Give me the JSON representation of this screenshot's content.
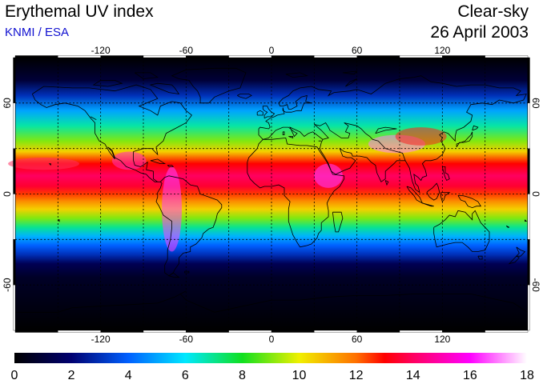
{
  "header": {
    "title": "Erythemal UV index",
    "credit": "KNMI / ESA",
    "condition": "Clear-sky",
    "date": "26 April 2003"
  },
  "map": {
    "projection": "equirectangular",
    "lon_range": [
      -180,
      180
    ],
    "lat_range": [
      -90,
      90
    ],
    "gridlines": "dotted",
    "grid_lon": [
      -150,
      -120,
      -90,
      -60,
      -30,
      0,
      30,
      60,
      90,
      120,
      150
    ],
    "grid_lat": [
      -60,
      -30,
      0,
      30,
      60
    ],
    "lon_ticks": [
      {
        "value": -120,
        "label": "-120"
      },
      {
        "value": -60,
        "label": "-60"
      },
      {
        "value": 0,
        "label": "0"
      },
      {
        "value": 60,
        "label": "60"
      },
      {
        "value": 120,
        "label": "120"
      }
    ],
    "lat_ticks": [
      {
        "value": 60,
        "label": "60"
      },
      {
        "value": 0,
        "label": "0"
      },
      {
        "value": -60,
        "label": "-60"
      }
    ],
    "uv_by_latitude": [
      {
        "lat": 90,
        "uv": 0
      },
      {
        "lat": 75,
        "uv": 1.0
      },
      {
        "lat": 65,
        "uv": 3.0
      },
      {
        "lat": 55,
        "uv": 5.0
      },
      {
        "lat": 45,
        "uv": 6.8
      },
      {
        "lat": 35,
        "uv": 9.0
      },
      {
        "lat": 28,
        "uv": 10.5
      },
      {
        "lat": 20,
        "uv": 13.0
      },
      {
        "lat": 12,
        "uv": 14.0
      },
      {
        "lat": 5,
        "uv": 13.5
      },
      {
        "lat": 0,
        "uv": 12.5
      },
      {
        "lat": -5,
        "uv": 11.5
      },
      {
        "lat": -10,
        "uv": 10.5
      },
      {
        "lat": -16,
        "uv": 9.0
      },
      {
        "lat": -22,
        "uv": 7.0
      },
      {
        "lat": -28,
        "uv": 5.2
      },
      {
        "lat": -34,
        "uv": 4.0
      },
      {
        "lat": -40,
        "uv": 3.0
      },
      {
        "lat": -46,
        "uv": 1.5
      },
      {
        "lat": -55,
        "uv": 0.7
      },
      {
        "lat": -90,
        "uv": 0
      }
    ]
  },
  "colorbar": {
    "min": 0,
    "max": 18,
    "labels": [
      "0",
      "2",
      "4",
      "6",
      "8",
      "10",
      "12",
      "14",
      "16",
      "18"
    ],
    "stops": [
      {
        "value": 0,
        "color": "#000000"
      },
      {
        "value": 2,
        "color": "#000070"
      },
      {
        "value": 4,
        "color": "#0060ff"
      },
      {
        "value": 6,
        "color": "#00e8ff"
      },
      {
        "value": 8,
        "color": "#10e020"
      },
      {
        "value": 10,
        "color": "#f0f000"
      },
      {
        "value": 12,
        "color": "#ff7000"
      },
      {
        "value": 13,
        "color": "#ff0000"
      },
      {
        "value": 14,
        "color": "#ff0060"
      },
      {
        "value": 16,
        "color": "#ff00ff"
      },
      {
        "value": 18,
        "color": "#ffffff"
      }
    ]
  }
}
